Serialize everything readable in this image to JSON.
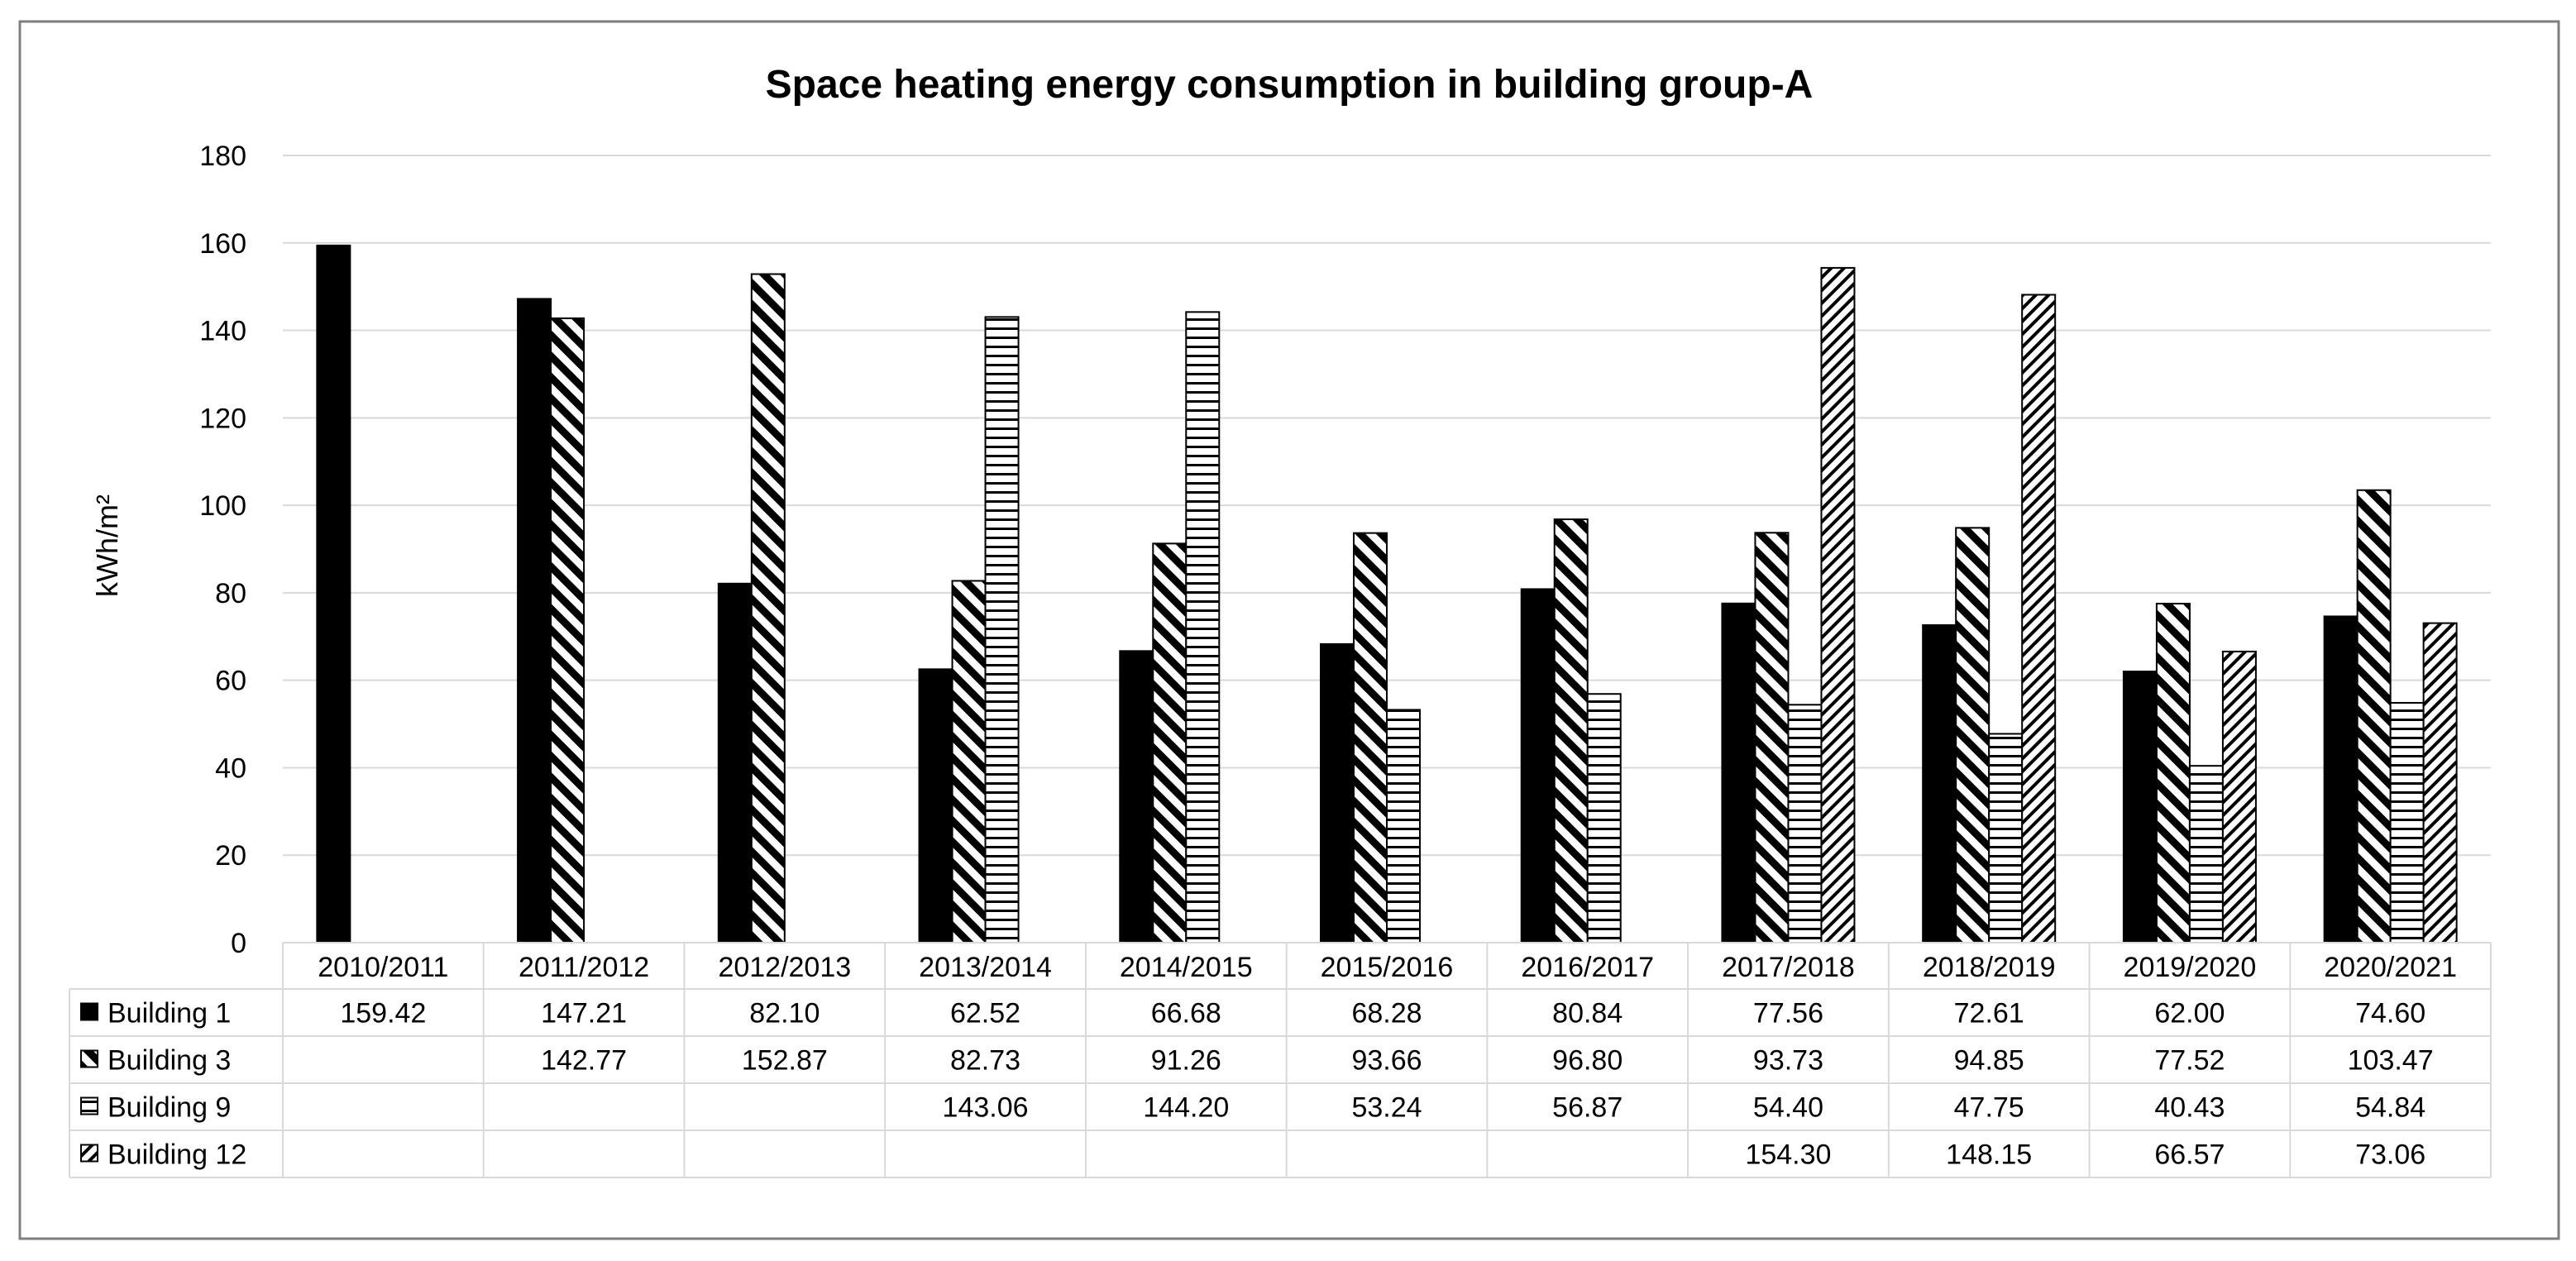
{
  "chart_data": {
    "type": "bar",
    "title": "Space heating energy consumption in building group-A",
    "ylabel": "kWh/m²",
    "xlabel": "",
    "ylim": [
      0,
      180
    ],
    "yticks": [
      "0",
      "20",
      "40",
      "60",
      "80",
      "100",
      "120",
      "140",
      "160",
      "180"
    ],
    "grid": true,
    "legend_placement": "data-table-left",
    "categories": [
      "2010/2011",
      "2011/2012",
      "2012/2013",
      "2013/2014",
      "2014/2015",
      "2015/2016",
      "2016/2017",
      "2017/2018",
      "2018/2019",
      "2019/2020",
      "2020/2021"
    ],
    "series": [
      {
        "name": "Building 1",
        "pattern": "solid",
        "values": [
          159.42,
          147.21,
          82.1,
          62.52,
          66.68,
          68.28,
          80.84,
          77.56,
          72.61,
          62.0,
          74.6
        ],
        "labels": [
          "159.42",
          "147.21",
          "82.10",
          "62.52",
          "66.68",
          "68.28",
          "80.84",
          "77.56",
          "72.61",
          "62.00",
          "74.60"
        ]
      },
      {
        "name": "Building 3",
        "pattern": "wide-diagonal",
        "values": [
          null,
          142.77,
          152.87,
          82.73,
          91.26,
          93.66,
          96.8,
          93.73,
          94.85,
          77.52,
          103.47
        ],
        "labels": [
          "",
          "142.77",
          "152.87",
          "82.73",
          "91.26",
          "93.66",
          "96.80",
          "93.73",
          "94.85",
          "77.52",
          "103.47"
        ]
      },
      {
        "name": "Building 9",
        "pattern": "horizontal-stripes",
        "values": [
          null,
          null,
          null,
          143.06,
          144.2,
          53.24,
          56.87,
          54.4,
          47.75,
          40.43,
          54.84
        ],
        "labels": [
          "",
          "",
          "",
          "143.06",
          "144.20",
          "53.24",
          "56.87",
          "54.40",
          "47.75",
          "40.43",
          "54.84"
        ]
      },
      {
        "name": "Building 12",
        "pattern": "narrow-diagonal",
        "values": [
          null,
          null,
          null,
          null,
          null,
          null,
          null,
          154.3,
          148.15,
          66.57,
          73.06
        ],
        "labels": [
          "",
          "",
          "",
          "",
          "",
          "",
          "",
          "154.30",
          "148.15",
          "66.57",
          "73.06"
        ]
      }
    ]
  },
  "colors": {
    "bar_fill": "#000000",
    "grid": "#d9d9d9",
    "border": "#7f7f7f",
    "text": "#000000"
  }
}
